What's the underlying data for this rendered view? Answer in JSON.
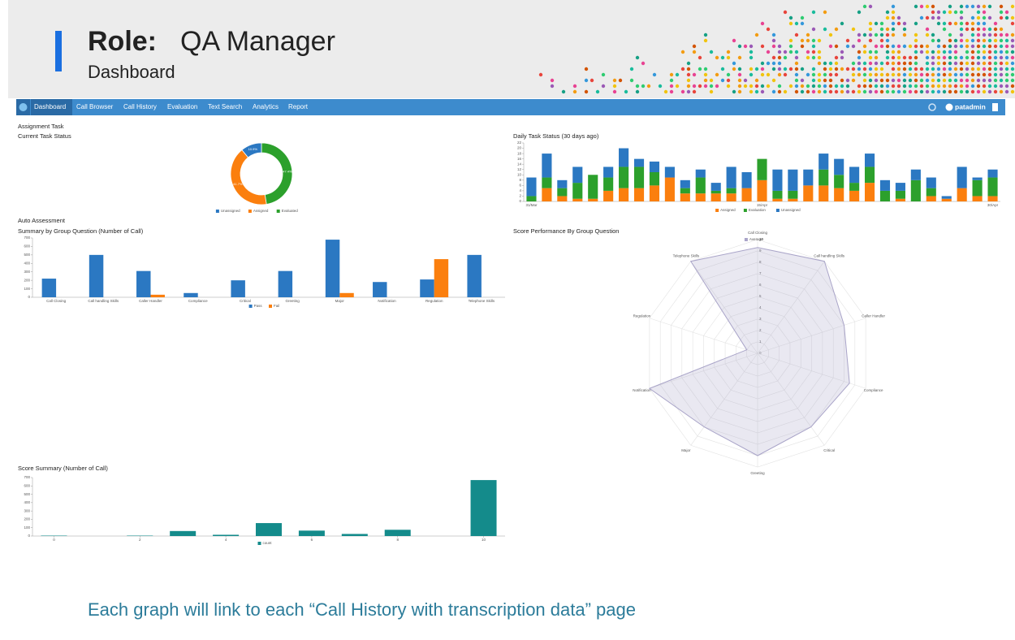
{
  "header": {
    "role_label": "Role:",
    "role": "QA Manager",
    "subtitle": "Dashboard"
  },
  "nav": {
    "items": [
      "Dashboard",
      "Call Browser",
      "Call History",
      "Evaluation",
      "Text Search",
      "Analytics",
      "Report"
    ],
    "user": "patadmin"
  },
  "sections": {
    "assignment": "Assignment Task",
    "auto": "Auto Assessment"
  },
  "chart_data": [
    {
      "type": "donut",
      "title": "Current Task Status",
      "categories": [
        "Unassigned",
        "Assigned",
        "Evaluated"
      ],
      "values": [
        10.9,
        41.7,
        47.4
      ],
      "value_labels": [
        "10.9%",
        "41.7%",
        "47.4%"
      ],
      "colors": [
        "#2b78c2",
        "#fb7f0e",
        "#2ca02c"
      ]
    },
    {
      "type": "bar",
      "stacked": true,
      "title": "Daily Task Status (30 days ago)",
      "categories": [
        "31/Mar",
        null,
        null,
        null,
        null,
        null,
        null,
        null,
        null,
        null,
        null,
        null,
        null,
        null,
        null,
        "15/Apr",
        null,
        null,
        null,
        null,
        null,
        null,
        null,
        null,
        null,
        null,
        null,
        null,
        null,
        null,
        "30/Apr"
      ],
      "series": [
        {
          "name": "Assigned",
          "color": "#fb7f0e",
          "values": [
            0,
            5,
            2,
            1,
            1,
            4,
            5,
            5,
            6,
            9,
            3,
            3,
            3,
            3,
            5,
            8,
            1,
            1,
            6,
            6,
            5,
            4,
            7,
            0,
            1,
            0,
            2,
            1,
            5,
            2,
            2
          ]
        },
        {
          "name": "Evaluation",
          "color": "#2ca02c",
          "values": [
            2,
            4,
            3,
            6,
            9,
            5,
            8,
            8,
            5,
            0,
            2,
            6,
            1,
            2,
            0,
            8,
            3,
            3,
            0,
            6,
            5,
            3,
            6,
            4,
            3,
            8,
            3,
            0,
            0,
            6,
            7
          ]
        },
        {
          "name": "Unassigned",
          "color": "#2b78c2",
          "values": [
            7,
            9,
            3,
            6,
            0,
            4,
            7,
            3,
            4,
            4,
            3,
            3,
            3,
            8,
            6,
            0,
            8,
            8,
            6,
            6,
            6,
            6,
            5,
            4,
            3,
            4,
            4,
            1,
            8,
            1,
            3
          ]
        }
      ],
      "ylim": [
        0,
        22
      ],
      "yticks": [
        0,
        2,
        4,
        6,
        8,
        10,
        12,
        14,
        16,
        18,
        20,
        22
      ],
      "grid": false
    },
    {
      "type": "bar",
      "title": "Summary by Group Question (Number of Call)",
      "categories": [
        "Call Closing",
        "Call handling Skills",
        "Caller Handler",
        "Compliance",
        "Critical",
        "Greeting",
        "Major",
        "Notification",
        "Regulation",
        "Telephone Skills"
      ],
      "series": [
        {
          "name": "Pass",
          "color": "#2b78c2",
          "values": [
            220,
            500,
            310,
            50,
            200,
            310,
            680,
            180,
            210,
            500
          ]
        },
        {
          "name": "Fail",
          "color": "#fb7f0e",
          "values": [
            0,
            0,
            30,
            0,
            0,
            0,
            50,
            0,
            450,
            0
          ]
        }
      ],
      "ylim": [
        0,
        700
      ],
      "yticks": [
        0,
        100,
        200,
        300,
        400,
        500,
        600,
        700
      ],
      "grid": false
    },
    {
      "type": "radar",
      "title": "Score Performance By Group Question",
      "categories": [
        "Call Closing",
        "Call handling Skills",
        "Caller Handler",
        "Compliance",
        "Critical",
        "Greeting",
        "Major",
        "Notification",
        "Regulation",
        "Telephone Skills"
      ],
      "series": [
        {
          "name": "Average",
          "color": "#a9a4c8",
          "values": [
            9.3,
            10,
            8,
            8.5,
            8,
            9,
            8,
            10,
            1,
            10
          ]
        }
      ],
      "ylim": [
        0,
        10
      ],
      "yticks": [
        0,
        1,
        2,
        3,
        4,
        5,
        6,
        7,
        8,
        9,
        10
      ],
      "grid": true
    },
    {
      "type": "bar",
      "title": "Score Summary (Number of Call)",
      "x": [
        0,
        2,
        3,
        4,
        5,
        6,
        7,
        8,
        10
      ],
      "series": [
        {
          "name": "count",
          "color": "#148b8b",
          "values": [
            5,
            5,
            60,
            15,
            155,
            65,
            25,
            75,
            670
          ]
        }
      ],
      "xlim": [
        -0.5,
        10.5
      ],
      "xticks": [
        0,
        2,
        4,
        6,
        8,
        10
      ],
      "ylim": [
        0,
        700
      ],
      "yticks": [
        0,
        100,
        200,
        300,
        400,
        500,
        600,
        700
      ],
      "grid": false
    }
  ],
  "footer": "Each graph will link to each “Call History with transcription data” page"
}
